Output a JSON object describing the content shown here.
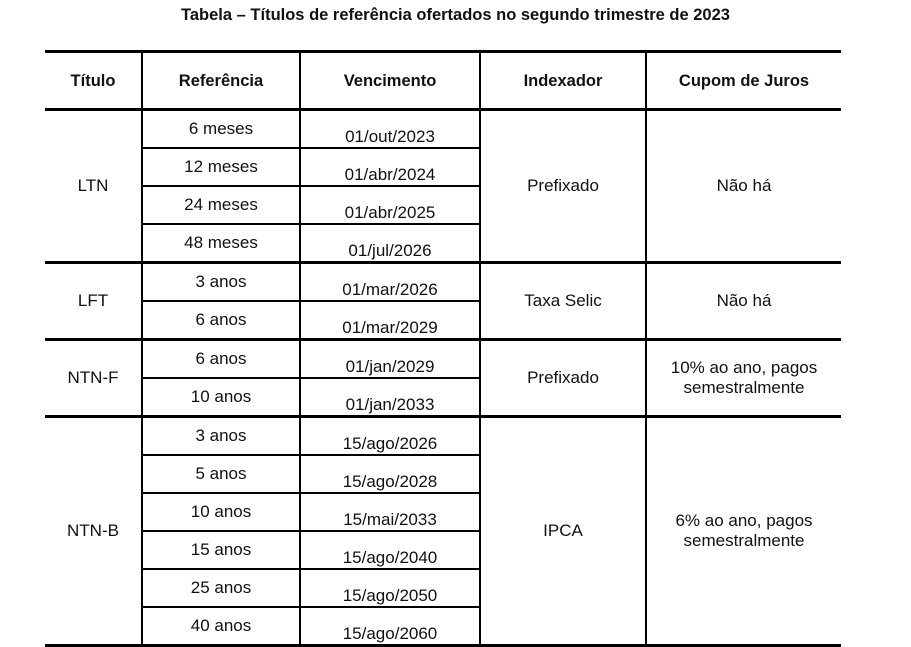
{
  "caption": "Tabela – Títulos de referência ofertados no segundo trimestre de 2023",
  "headers": {
    "titulo": "Título",
    "referencia": "Referência",
    "vencimento": "Vencimento",
    "indexador": "Indexador",
    "cupom": "Cupom de Juros"
  },
  "groups": [
    {
      "titulo": "LTN",
      "indexador": "Prefixado",
      "cupom": "Não há",
      "rows": [
        {
          "referencia": "6 meses",
          "vencimento": "01/out/2023"
        },
        {
          "referencia": "12 meses",
          "vencimento": "01/abr/2024"
        },
        {
          "referencia": "24 meses",
          "vencimento": "01/abr/2025"
        },
        {
          "referencia": "48 meses",
          "vencimento": "01/jul/2026"
        }
      ]
    },
    {
      "titulo": "LFT",
      "indexador": "Taxa Selic",
      "cupom": "Não há",
      "rows": [
        {
          "referencia": "3 anos",
          "vencimento": "01/mar/2026"
        },
        {
          "referencia": "6 anos",
          "vencimento": "01/mar/2029"
        }
      ]
    },
    {
      "titulo": "NTN-F",
      "indexador": "Prefixado",
      "cupom": "10% ao ano, pagos\nsemestralmente",
      "rows": [
        {
          "referencia": "6 anos",
          "vencimento": "01/jan/2029"
        },
        {
          "referencia": "10 anos",
          "vencimento": "01/jan/2033"
        }
      ]
    },
    {
      "titulo": "NTN-B",
      "indexador": "IPCA",
      "cupom": "6% ao ano, pagos\nsemestralmente",
      "rows": [
        {
          "referencia": "3 anos",
          "vencimento": "15/ago/2026"
        },
        {
          "referencia": "5 anos",
          "vencimento": "15/ago/2028"
        },
        {
          "referencia": "10 anos",
          "vencimento": "15/mai/2033"
        },
        {
          "referencia": "15 anos",
          "vencimento": "15/ago/2040"
        },
        {
          "referencia": "25 anos",
          "vencimento": "15/ago/2050"
        },
        {
          "referencia": "40 anos",
          "vencimento": "15/ago/2060"
        }
      ]
    }
  ]
}
